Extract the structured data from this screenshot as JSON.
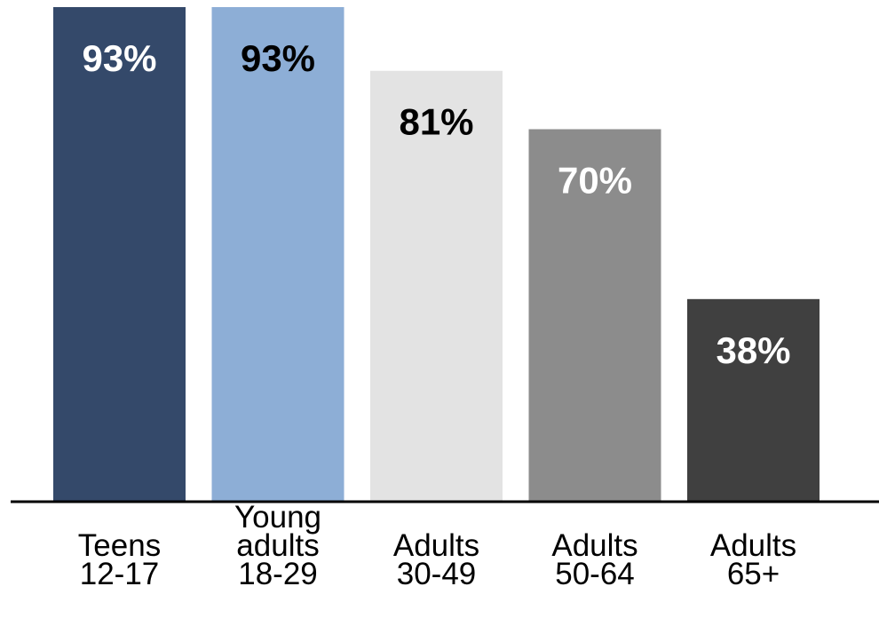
{
  "chart_data": {
    "type": "bar",
    "categories": [
      "Teens 12-17",
      "Young adults 18-29",
      "Adults 30-49",
      "Adults 50-64",
      "Adults 65+"
    ],
    "category_label_lines": [
      [
        "Teens",
        "12-17"
      ],
      [
        "Young",
        "adults",
        "18-29"
      ],
      [
        "Adults",
        "30-49"
      ],
      [
        "Adults",
        "50-64"
      ],
      [
        "Adults",
        "65+"
      ]
    ],
    "values": [
      93,
      93,
      81,
      70,
      38
    ],
    "data_labels": [
      "93%",
      "93%",
      "81%",
      "70%",
      "38%"
    ],
    "colors": [
      "#34496a",
      "#8daed6",
      "#e3e3e3",
      "#8c8c8c",
      "#404040"
    ],
    "label_colors": [
      "#ffffff",
      "#000000",
      "#000000",
      "#ffffff",
      "#ffffff"
    ],
    "title": "",
    "xlabel": "",
    "ylabel": "",
    "ylim": [
      0,
      93
    ],
    "grid": false,
    "legend": "none"
  }
}
